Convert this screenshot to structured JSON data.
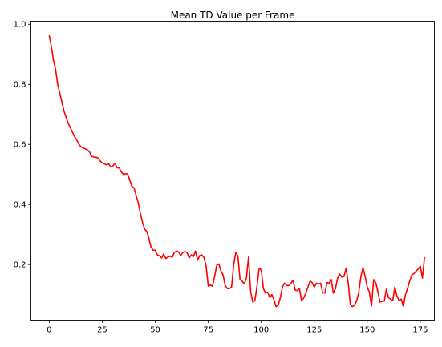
{
  "chart_data": {
    "type": "line",
    "title": "Mean TD Value per Frame",
    "xlabel": "",
    "ylabel": "",
    "xlim": [
      -8.65,
      181.65
    ],
    "ylim": [
      0.015,
      1.01
    ],
    "xticks": [
      0,
      25,
      50,
      75,
      100,
      125,
      150,
      175
    ],
    "yticks": [
      0.2,
      0.4,
      0.6,
      0.8,
      1.0
    ],
    "ytick_labels": [
      "0.2",
      "0.4",
      "0.6",
      "0.8",
      "1.0"
    ],
    "grid": false,
    "legend": "none",
    "series": [
      {
        "color": "#ff0000",
        "x_start": 0,
        "x_step": 1,
        "values": [
          0.963,
          0.925,
          0.88,
          0.85,
          0.8,
          0.77,
          0.74,
          0.71,
          0.69,
          0.67,
          0.655,
          0.64,
          0.625,
          0.615,
          0.6,
          0.592,
          0.588,
          0.585,
          0.582,
          0.575,
          0.56,
          0.558,
          0.557,
          0.555,
          0.545,
          0.538,
          0.535,
          0.532,
          0.535,
          0.525,
          0.528,
          0.537,
          0.522,
          0.522,
          0.508,
          0.5,
          0.502,
          0.502,
          0.48,
          0.46,
          0.455,
          0.43,
          0.405,
          0.37,
          0.34,
          0.318,
          0.31,
          0.288,
          0.258,
          0.248,
          0.248,
          0.232,
          0.229,
          0.222,
          0.235,
          0.22,
          0.225,
          0.228,
          0.224,
          0.24,
          0.245,
          0.242,
          0.23,
          0.24,
          0.243,
          0.24,
          0.222,
          0.232,
          0.226,
          0.245,
          0.215,
          0.23,
          0.232,
          0.223,
          0.195,
          0.128,
          0.132,
          0.128,
          0.16,
          0.198,
          0.202,
          0.178,
          0.165,
          0.13,
          0.12,
          0.12,
          0.125,
          0.2,
          0.24,
          0.228,
          0.15,
          0.145,
          0.135,
          0.155,
          0.225,
          0.11,
          0.075,
          0.08,
          0.128,
          0.188,
          0.182,
          0.12,
          0.105,
          0.108,
          0.09,
          0.1,
          0.082,
          0.06,
          0.065,
          0.09,
          0.125,
          0.138,
          0.13,
          0.13,
          0.138,
          0.148,
          0.115,
          0.113,
          0.12,
          0.08,
          0.088,
          0.105,
          0.125,
          0.145,
          0.14,
          0.125,
          0.138,
          0.135,
          0.138,
          0.105,
          0.105,
          0.14,
          0.138,
          0.15,
          0.105,
          0.12,
          0.155,
          0.168,
          0.158,
          0.16,
          0.188,
          0.14,
          0.068,
          0.06,
          0.065,
          0.08,
          0.108,
          0.16,
          0.19,
          0.16,
          0.125,
          0.108,
          0.062,
          0.15,
          0.14,
          0.11,
          0.075,
          0.078,
          0.078,
          0.118,
          0.09,
          0.085,
          0.08,
          0.125,
          0.095,
          0.08,
          0.085,
          0.06,
          0.1,
          0.12,
          0.145,
          0.165,
          0.17,
          0.178,
          0.185,
          0.195,
          0.155,
          0.225
        ]
      }
    ]
  }
}
